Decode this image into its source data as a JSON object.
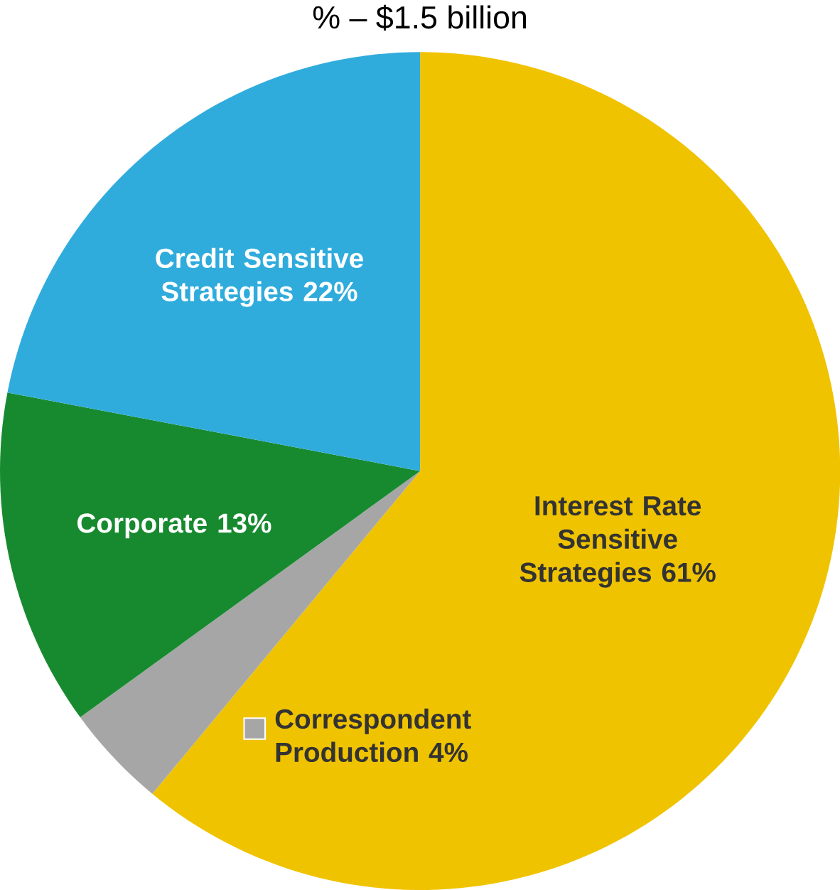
{
  "chart_data": {
    "type": "pie",
    "title": "% – $1.5 billion",
    "categories": [
      "Interest Rate Sensitive Strategies",
      "Correspondent Production",
      "Corporate",
      "Credit Sensitive Strategies"
    ],
    "values": [
      61,
      4,
      13,
      22
    ],
    "value_labels": [
      "61%",
      "4%",
      "13%",
      "22%"
    ],
    "colors": [
      "#f0c300",
      "#a6a6a6",
      "#178a2f",
      "#30acdc"
    ]
  }
}
